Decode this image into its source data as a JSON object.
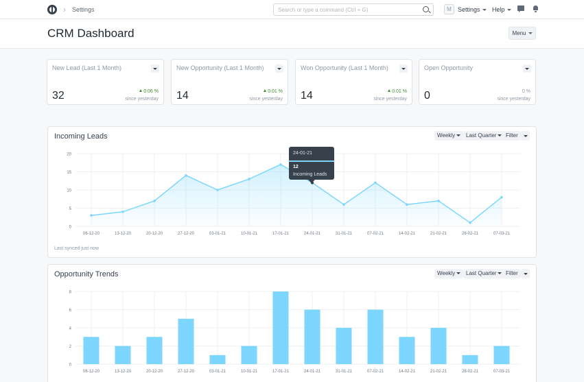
{
  "navbar": {
    "breadcrumb": "Settings",
    "search_placeholder": "Search or type a command (Ctrl + G)",
    "avatar_initial": "M",
    "settings_label": "Settings",
    "help_label": "Help"
  },
  "page": {
    "title": "CRM Dashboard",
    "menu_label": "Menu"
  },
  "cards": [
    {
      "title": "New Lead (Last 1 Month)",
      "value": "32",
      "change": "0.06 %",
      "since": "since yesterday",
      "trend": "up"
    },
    {
      "title": "New Opportunity (Last 1 Month)",
      "value": "14",
      "change": "0.01 %",
      "since": "since yesterday",
      "trend": "up"
    },
    {
      "title": "Won Opportunity (Last 1 Month)",
      "value": "14",
      "change": "0.01 %",
      "since": "since yesterday",
      "trend": "up"
    },
    {
      "title": "Open Opportunity",
      "value": "0",
      "change": "0 %",
      "since": "since yesterday",
      "trend": "none"
    }
  ],
  "leads_panel": {
    "title": "Incoming Leads",
    "weekly": "Weekly",
    "range": "Last Quarter",
    "filter": "Filter",
    "synced": "Last synced just now",
    "tooltip": {
      "date": "24-01-21",
      "value": "12",
      "label": "Incoming Leads"
    }
  },
  "opp_panel": {
    "title": "Opportunity Trends",
    "weekly": "Weekly",
    "range": "Last Quarter",
    "filter": "Filter"
  },
  "colors": {
    "accent": "#7cd6fd",
    "positive": "#3d8f2b"
  },
  "chart_data": [
    {
      "type": "area",
      "title": "Incoming Leads",
      "categories": [
        "06-12-20",
        "13-12-20",
        "20-12-20",
        "27-12-20",
        "03-01-21",
        "10-01-21",
        "17-01-21",
        "24-01-21",
        "31-01-21",
        "07-02-21",
        "14-02-21",
        "21-02-21",
        "28-02-21",
        "07-03-21"
      ],
      "series": [
        {
          "name": "Incoming Leads",
          "values": [
            3,
            4,
            7,
            14,
            10,
            13,
            17,
            12,
            6,
            12,
            6,
            7,
            1,
            8
          ]
        }
      ],
      "yticks": [
        0,
        5,
        10,
        15,
        20
      ],
      "ylim": [
        0,
        20
      ],
      "grid": true
    },
    {
      "type": "bar",
      "title": "Opportunity Trends",
      "categories": [
        "06-12-20",
        "13-12-20",
        "20-12-20",
        "27-12-20",
        "03-01-21",
        "10-01-21",
        "17-01-21",
        "24-01-21",
        "31-01-21",
        "07-02-21",
        "14-02-21",
        "21-02-21",
        "28-02-21",
        "07-03-21"
      ],
      "values": [
        3,
        2,
        3,
        5,
        1,
        2,
        8,
        6,
        4,
        6,
        3,
        4,
        1,
        2
      ],
      "yticks": [
        0,
        2,
        4,
        6,
        8
      ],
      "ylim": [
        0,
        8
      ],
      "grid": true
    }
  ]
}
